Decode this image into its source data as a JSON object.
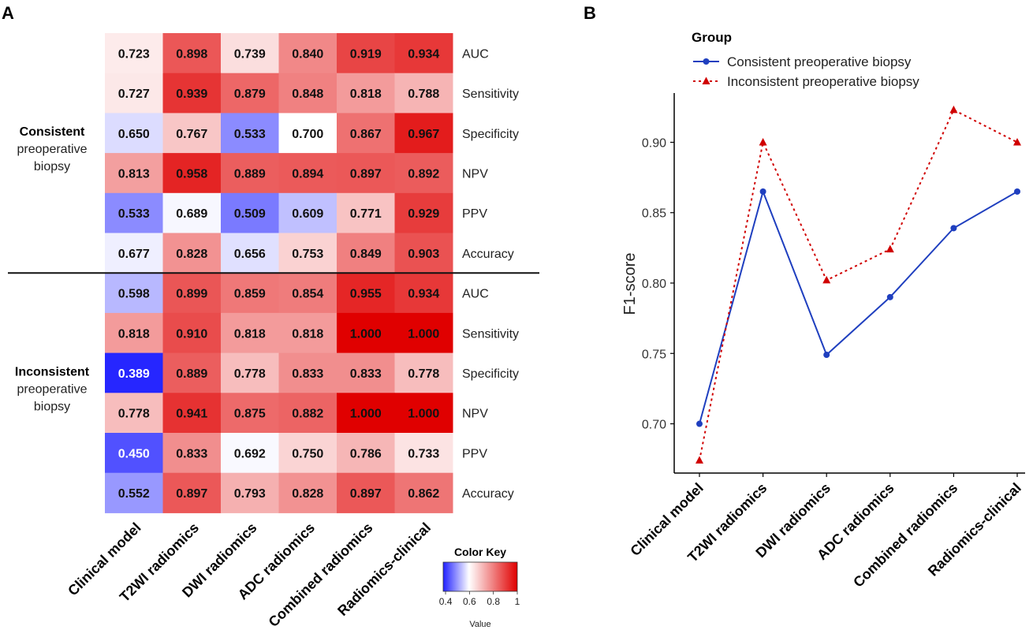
{
  "panel_labels": {
    "a": "A",
    "b": "B"
  },
  "chart_data": [
    {
      "type": "heatmap",
      "columns": [
        "Clinical model",
        "T2WI radiomics",
        "DWI radiomics",
        "ADC radiomics",
        "Combined radiomics",
        "Radiomics-clinical"
      ],
      "groups": [
        {
          "label_bold": "Consistent",
          "label_lines": [
            "preoperative",
            "biopsy"
          ],
          "rows": [
            {
              "metric": "AUC",
              "values": [
                "0.723",
                "0.898",
                "0.739",
                "0.840",
                "0.919",
                "0.934"
              ]
            },
            {
              "metric": "Sensitivity",
              "values": [
                "0.727",
                "0.939",
                "0.879",
                "0.848",
                "0.818",
                "0.788"
              ]
            },
            {
              "metric": "Specificity",
              "values": [
                "0.650",
                "0.767",
                "0.533",
                "0.700",
                "0.867",
                "0.967"
              ]
            },
            {
              "metric": "NPV",
              "values": [
                "0.813",
                "0.958",
                "0.889",
                "0.894",
                "0.897",
                "0.892"
              ]
            },
            {
              "metric": "PPV",
              "values": [
                "0.533",
                "0.689",
                "0.509",
                "0.609",
                "0.771",
                "0.929"
              ]
            },
            {
              "metric": "Accuracy",
              "values": [
                "0.677",
                "0.828",
                "0.656",
                "0.753",
                "0.849",
                "0.903"
              ]
            }
          ]
        },
        {
          "label_bold": "Inconsistent",
          "label_lines": [
            "preoperative",
            "biopsy"
          ],
          "rows": [
            {
              "metric": "AUC",
              "values": [
                "0.598",
                "0.899",
                "0.859",
                "0.854",
                "0.955",
                "0.934"
              ]
            },
            {
              "metric": "Sensitivity",
              "values": [
                "0.818",
                "0.910",
                "0.818",
                "0.818",
                "1.000",
                "1.000"
              ]
            },
            {
              "metric": "Specificity",
              "values": [
                "0.389",
                "0.889",
                "0.778",
                "0.833",
                "0.833",
                "0.778"
              ]
            },
            {
              "metric": "NPV",
              "values": [
                "0.778",
                "0.941",
                "0.875",
                "0.882",
                "1.000",
                "1.000"
              ]
            },
            {
              "metric": "PPV",
              "values": [
                "0.450",
                "0.833",
                "0.692",
                "0.750",
                "0.786",
                "0.733"
              ]
            },
            {
              "metric": "Accuracy",
              "values": [
                "0.552",
                "0.897",
                "0.793",
                "0.828",
                "0.897",
                "0.862"
              ]
            }
          ]
        }
      ],
      "color_key": {
        "title": "Color Key",
        "xlabel": "Value",
        "ticks": [
          "0.4",
          "0.6",
          "0.8",
          "1"
        ],
        "range": [
          0.38,
          1.0
        ],
        "low_color": "#2020ff",
        "mid_color": "#ffffff",
        "high_color": "#e00000"
      }
    },
    {
      "type": "line",
      "categories": [
        "Clinical model",
        "T2WI radiomics",
        "DWI radiomics",
        "ADC radiomics",
        "Combined radiomics",
        "Radiomics-clinical"
      ],
      "ylabel": "F1-score",
      "ylim": [
        0.665,
        0.935
      ],
      "yticks": [
        "0.70",
        "0.75",
        "0.80",
        "0.85",
        "0.90"
      ],
      "legend_title": "Group",
      "series": [
        {
          "name": "Consistent preoperative biopsy",
          "values": [
            0.7,
            0.865,
            0.749,
            0.79,
            0.839,
            0.865
          ],
          "color": "#1f3fbf",
          "style": "solid",
          "marker": "circle"
        },
        {
          "name": "Inconsistent preoperative biopsy",
          "values": [
            0.674,
            0.9,
            0.802,
            0.824,
            0.923,
            0.9
          ],
          "color": "#d00000",
          "style": "dotted",
          "marker": "triangle"
        }
      ]
    }
  ]
}
